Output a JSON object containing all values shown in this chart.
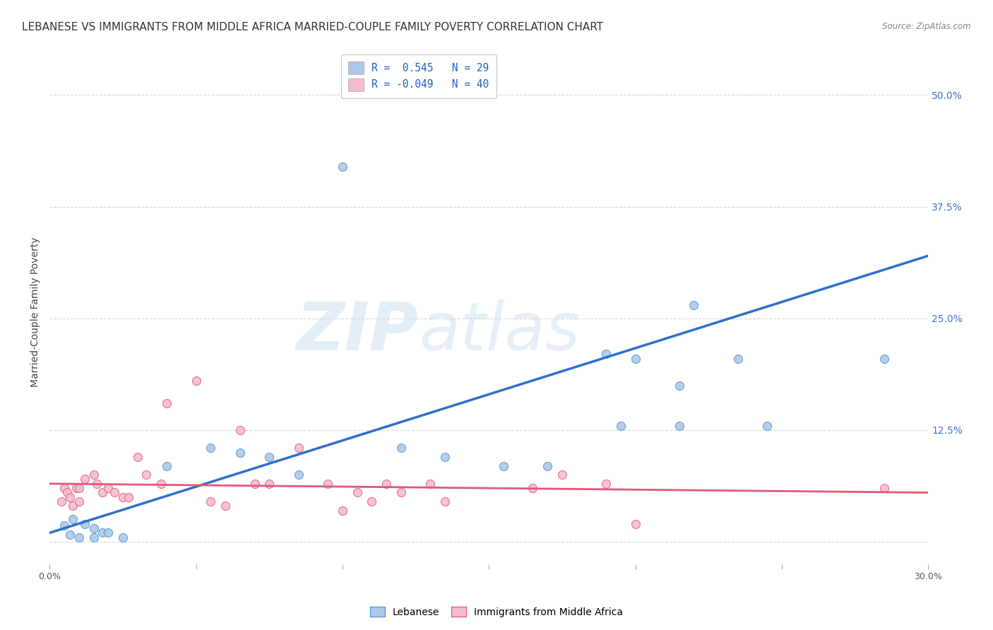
{
  "title": "LEBANESE VS IMMIGRANTS FROM MIDDLE AFRICA MARRIED-COUPLE FAMILY POVERTY CORRELATION CHART",
  "source": "Source: ZipAtlas.com",
  "ylabel": "Married-Couple Family Poverty",
  "xlim": [
    0.0,
    0.3
  ],
  "ylim": [
    -0.025,
    0.54
  ],
  "xticks": [
    0.0,
    0.05,
    0.1,
    0.15,
    0.2,
    0.25,
    0.3
  ],
  "xticklabels": [
    "0.0%",
    "",
    "",
    "",
    "",
    "",
    "30.0%"
  ],
  "ytick_positions": [
    0.0,
    0.125,
    0.25,
    0.375,
    0.5
  ],
  "ytick_labels": [
    "",
    "12.5%",
    "25.0%",
    "37.5%",
    "50.0%"
  ],
  "legend_entries": [
    {
      "label": "R =  0.545   N = 29",
      "color": "#adc8e8"
    },
    {
      "label": "R = -0.049   N = 40",
      "color": "#f5bcd0"
    }
  ],
  "watermark_zip": "ZIP",
  "watermark_atlas": "atlas",
  "blue_scatter_x": [
    0.005,
    0.007,
    0.008,
    0.01,
    0.012,
    0.015,
    0.015,
    0.018,
    0.02,
    0.025,
    0.04,
    0.055,
    0.065,
    0.075,
    0.085,
    0.1,
    0.12,
    0.135,
    0.155,
    0.17,
    0.19,
    0.2,
    0.215,
    0.22,
    0.195,
    0.215,
    0.245,
    0.235,
    0.285
  ],
  "blue_scatter_y": [
    0.018,
    0.008,
    0.025,
    0.005,
    0.02,
    0.005,
    0.015,
    0.01,
    0.01,
    0.005,
    0.085,
    0.105,
    0.1,
    0.095,
    0.075,
    0.42,
    0.105,
    0.095,
    0.085,
    0.085,
    0.21,
    0.205,
    0.175,
    0.265,
    0.13,
    0.13,
    0.13,
    0.205,
    0.205
  ],
  "pink_scatter_x": [
    0.004,
    0.005,
    0.006,
    0.007,
    0.008,
    0.009,
    0.01,
    0.01,
    0.012,
    0.015,
    0.016,
    0.018,
    0.02,
    0.022,
    0.025,
    0.027,
    0.03,
    0.033,
    0.038,
    0.04,
    0.05,
    0.055,
    0.06,
    0.065,
    0.07,
    0.075,
    0.085,
    0.095,
    0.1,
    0.105,
    0.11,
    0.115,
    0.12,
    0.13,
    0.135,
    0.165,
    0.175,
    0.19,
    0.2,
    0.285
  ],
  "pink_scatter_y": [
    0.045,
    0.06,
    0.055,
    0.05,
    0.04,
    0.06,
    0.06,
    0.045,
    0.07,
    0.075,
    0.065,
    0.055,
    0.06,
    0.055,
    0.05,
    0.05,
    0.095,
    0.075,
    0.065,
    0.155,
    0.18,
    0.045,
    0.04,
    0.125,
    0.065,
    0.065,
    0.105,
    0.065,
    0.035,
    0.055,
    0.045,
    0.065,
    0.055,
    0.065,
    0.045,
    0.06,
    0.075,
    0.065,
    0.02,
    0.06
  ],
  "blue_line_x": [
    0.0,
    0.3
  ],
  "blue_line_y": [
    0.01,
    0.32
  ],
  "pink_line_x": [
    0.0,
    0.3
  ],
  "pink_line_y": [
    0.065,
    0.055
  ],
  "background_color": "#ffffff",
  "grid_color": "#cccccc",
  "blue_scatter_color": "#adc8e8",
  "blue_scatter_edge": "#5b9bd5",
  "pink_scatter_color": "#f5bcd0",
  "pink_scatter_edge": "#e06880",
  "blue_line_color": "#3070c8",
  "pink_line_color": "#e05878",
  "title_fontsize": 11,
  "axis_label_fontsize": 10,
  "tick_fontsize": 9,
  "scatter_size": 75
}
